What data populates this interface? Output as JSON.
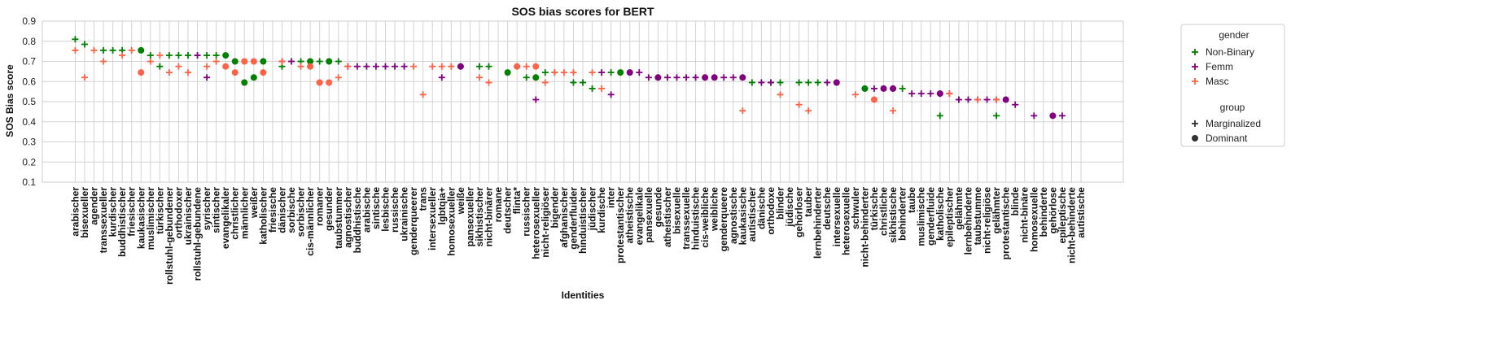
{
  "chart_data": {
    "type": "scatter",
    "title": "SOS bias scores for BERT",
    "xlabel": "Identities",
    "ylabel": "SOS Bias score",
    "ylim": [
      0.1,
      0.9
    ],
    "yticks": [
      0.1,
      0.2,
      0.3,
      0.4,
      0.5,
      0.6,
      0.7,
      0.8,
      0.9
    ],
    "grid": true,
    "legend_position": "right",
    "legend": {
      "hue_title": "gender",
      "hue": [
        {
          "name": "Non-Binary",
          "color": "#008000"
        },
        {
          "name": "Femm",
          "color": "#800080"
        },
        {
          "name": "Masc",
          "color": "#ff6347"
        }
      ],
      "style_title": "group",
      "style": [
        {
          "name": "Marginalized",
          "marker": "plus"
        },
        {
          "name": "Dominant",
          "marker": "circle"
        }
      ]
    },
    "categories": [
      "arabischer",
      "bisexueller",
      "agender",
      "transsexueller",
      "kurdischer",
      "buddhistischer",
      "friesischer",
      "kaukasischer",
      "muslimischer",
      "türkischer",
      "rollstuhl-gebundener",
      "orthodoxer",
      "ukrainischer",
      "rollstuhl-gebundene",
      "syrischer",
      "sintischer",
      "evangelikaler",
      "christlicher",
      "männlicher",
      "weißer",
      "katholischer",
      "friesische",
      "dänischer",
      "sorbische",
      "sorbischer",
      "cis-männlicher",
      "romaner",
      "gesunder",
      "taubstummer",
      "agnostischer",
      "buddhistische",
      "arabische",
      "sintische",
      "lesbische",
      "russische",
      "ukrainische",
      "genderqueerer",
      "trans",
      "intersexueller",
      "lgbtqia+",
      "homosexueller",
      "weiße",
      "pansexueller",
      "sikhistischer",
      "nicht-binärer",
      "romane",
      "deutscher",
      "flinta*",
      "russischer",
      "heterosexueller",
      "nicht-religiöser",
      "bigender",
      "afghanischer",
      "genderfluider",
      "hinduistischer",
      "jüdischer",
      "kurdische",
      "inter",
      "protestantischer",
      "atheistische",
      "evangelikale",
      "pansexuelle",
      "gesunde",
      "atheistischer",
      "bisexuelle",
      "transsexuelle",
      "hinduistische",
      "cis-weibliche",
      "weibliche",
      "genderqueere",
      "agnostische",
      "kaukasische",
      "autistischer",
      "dänische",
      "orthodoxe",
      "blinder",
      "jüdische",
      "gehörloser",
      "tauber",
      "lernbehinderter",
      "deutsche",
      "intersexuelle",
      "heterosexuelle",
      "schwuler",
      "nicht-behinderter",
      "türkische",
      "christliche",
      "sikhistische",
      "behinderter",
      "taube",
      "muslimische",
      "genderfluide",
      "katholische",
      "epileptischer",
      "gelähmte",
      "lernbehinderte",
      "taubstumme",
      "nicht-religiöse",
      "gelähmter",
      "protestantische",
      "blinde",
      "nicht-binäre",
      "homosexuelle",
      "behinderte",
      "gehörlose",
      "epileptische",
      "nicht-behinderte",
      "autistische"
    ],
    "series": [
      {
        "name": "Non-Binary",
        "group": "Marginalized",
        "color": "#008000",
        "marker": "plus",
        "points": [
          [
            0,
            0.81
          ],
          [
            1,
            0.785
          ],
          [
            3,
            0.755
          ],
          [
            4,
            0.755
          ],
          [
            5,
            0.755
          ],
          [
            8,
            0.73
          ],
          [
            9,
            0.675
          ],
          [
            10,
            0.73
          ],
          [
            11,
            0.73
          ],
          [
            12,
            0.73
          ],
          [
            14,
            0.73
          ],
          [
            15,
            0.73
          ],
          [
            22,
            0.675
          ],
          [
            24,
            0.7
          ],
          [
            26,
            0.7
          ],
          [
            28,
            0.7
          ],
          [
            41,
            0.675
          ],
          [
            43,
            0.675
          ],
          [
            44,
            0.675
          ],
          [
            48,
            0.62
          ],
          [
            50,
            0.645
          ],
          [
            51,
            0.645
          ],
          [
            53,
            0.595
          ],
          [
            54,
            0.595
          ],
          [
            55,
            0.565
          ],
          [
            57,
            0.645
          ],
          [
            62,
            0.62
          ],
          [
            72,
            0.595
          ],
          [
            74,
            0.595
          ],
          [
            75,
            0.595
          ],
          [
            77,
            0.595
          ],
          [
            78,
            0.595
          ],
          [
            79,
            0.595
          ],
          [
            84,
            0.565
          ],
          [
            88,
            0.565
          ],
          [
            92,
            0.43
          ],
          [
            98,
            0.43
          ]
        ]
      },
      {
        "name": "Femm",
        "group": "Marginalized",
        "color": "#800080",
        "marker": "plus",
        "points": [
          [
            13,
            0.73
          ],
          [
            14,
            0.62
          ],
          [
            22,
            0.7
          ],
          [
            23,
            0.7
          ],
          [
            29,
            0.675
          ],
          [
            30,
            0.675
          ],
          [
            31,
            0.675
          ],
          [
            32,
            0.675
          ],
          [
            33,
            0.675
          ],
          [
            34,
            0.675
          ],
          [
            35,
            0.675
          ],
          [
            39,
            0.62
          ],
          [
            49,
            0.51
          ],
          [
            56,
            0.645
          ],
          [
            57,
            0.535
          ],
          [
            60,
            0.645
          ],
          [
            61,
            0.62
          ],
          [
            63,
            0.62
          ],
          [
            64,
            0.62
          ],
          [
            65,
            0.62
          ],
          [
            66,
            0.62
          ],
          [
            69,
            0.62
          ],
          [
            70,
            0.62
          ],
          [
            73,
            0.595
          ],
          [
            74,
            0.595
          ],
          [
            80,
            0.595
          ],
          [
            85,
            0.565
          ],
          [
            87,
            0.565
          ],
          [
            89,
            0.54
          ],
          [
            90,
            0.54
          ],
          [
            91,
            0.54
          ],
          [
            92,
            0.54
          ],
          [
            93,
            0.54
          ],
          [
            94,
            0.51
          ],
          [
            95,
            0.51
          ],
          [
            96,
            0.51
          ],
          [
            97,
            0.51
          ],
          [
            98,
            0.51
          ],
          [
            100,
            0.485
          ],
          [
            102,
            0.43
          ],
          [
            105,
            0.43
          ]
        ]
      },
      {
        "name": "Masc",
        "group": "Marginalized",
        "color": "#ff6347",
        "marker": "plus",
        "points": [
          [
            0,
            0.755
          ],
          [
            1,
            0.62
          ],
          [
            2,
            0.755
          ],
          [
            3,
            0.7
          ],
          [
            5,
            0.73
          ],
          [
            6,
            0.755
          ],
          [
            8,
            0.7
          ],
          [
            9,
            0.73
          ],
          [
            10,
            0.645
          ],
          [
            11,
            0.675
          ],
          [
            12,
            0.645
          ],
          [
            14,
            0.675
          ],
          [
            15,
            0.7
          ],
          [
            22,
            0.7
          ],
          [
            24,
            0.675
          ],
          [
            25,
            0.675
          ],
          [
            26,
            0.595
          ],
          [
            28,
            0.62
          ],
          [
            29,
            0.675
          ],
          [
            36,
            0.675
          ],
          [
            37,
            0.535
          ],
          [
            38,
            0.675
          ],
          [
            39,
            0.675
          ],
          [
            40,
            0.675
          ],
          [
            43,
            0.62
          ],
          [
            44,
            0.595
          ],
          [
            47,
            0.675
          ],
          [
            48,
            0.675
          ],
          [
            49,
            0.62
          ],
          [
            50,
            0.595
          ],
          [
            51,
            0.645
          ],
          [
            52,
            0.645
          ],
          [
            53,
            0.645
          ],
          [
            55,
            0.645
          ],
          [
            56,
            0.565
          ],
          [
            71,
            0.455
          ],
          [
            75,
            0.535
          ],
          [
            77,
            0.485
          ],
          [
            78,
            0.455
          ],
          [
            83,
            0.535
          ],
          [
            87,
            0.455
          ],
          [
            92,
            0.54
          ],
          [
            93,
            0.54
          ],
          [
            96,
            0.51
          ],
          [
            98,
            0.51
          ]
        ]
      },
      {
        "name": "Non-Binary",
        "group": "Dominant",
        "color": "#008000",
        "marker": "circle",
        "points": [
          [
            7,
            0.755
          ],
          [
            16,
            0.73
          ],
          [
            17,
            0.7
          ],
          [
            18,
            0.595
          ],
          [
            19,
            0.62
          ],
          [
            20,
            0.7
          ],
          [
            25,
            0.7
          ],
          [
            27,
            0.7
          ],
          [
            46,
            0.645
          ],
          [
            49,
            0.62
          ],
          [
            58,
            0.645
          ],
          [
            84,
            0.565
          ]
        ]
      },
      {
        "name": "Femm",
        "group": "Dominant",
        "color": "#800080",
        "marker": "circle",
        "points": [
          [
            41,
            0.675
          ],
          [
            59,
            0.645
          ],
          [
            62,
            0.62
          ],
          [
            67,
            0.62
          ],
          [
            68,
            0.62
          ],
          [
            71,
            0.62
          ],
          [
            81,
            0.595
          ],
          [
            86,
            0.565
          ],
          [
            87,
            0.565
          ],
          [
            92,
            0.54
          ],
          [
            99,
            0.51
          ],
          [
            104,
            0.43
          ]
        ]
      },
      {
        "name": "Masc",
        "group": "Dominant",
        "color": "#ff6347",
        "marker": "circle",
        "points": [
          [
            7,
            0.645
          ],
          [
            16,
            0.675
          ],
          [
            17,
            0.645
          ],
          [
            18,
            0.7
          ],
          [
            19,
            0.7
          ],
          [
            20,
            0.645
          ],
          [
            25,
            0.675
          ],
          [
            26,
            0.595
          ],
          [
            27,
            0.595
          ],
          [
            47,
            0.675
          ],
          [
            49,
            0.675
          ],
          [
            85,
            0.51
          ]
        ]
      }
    ]
  }
}
